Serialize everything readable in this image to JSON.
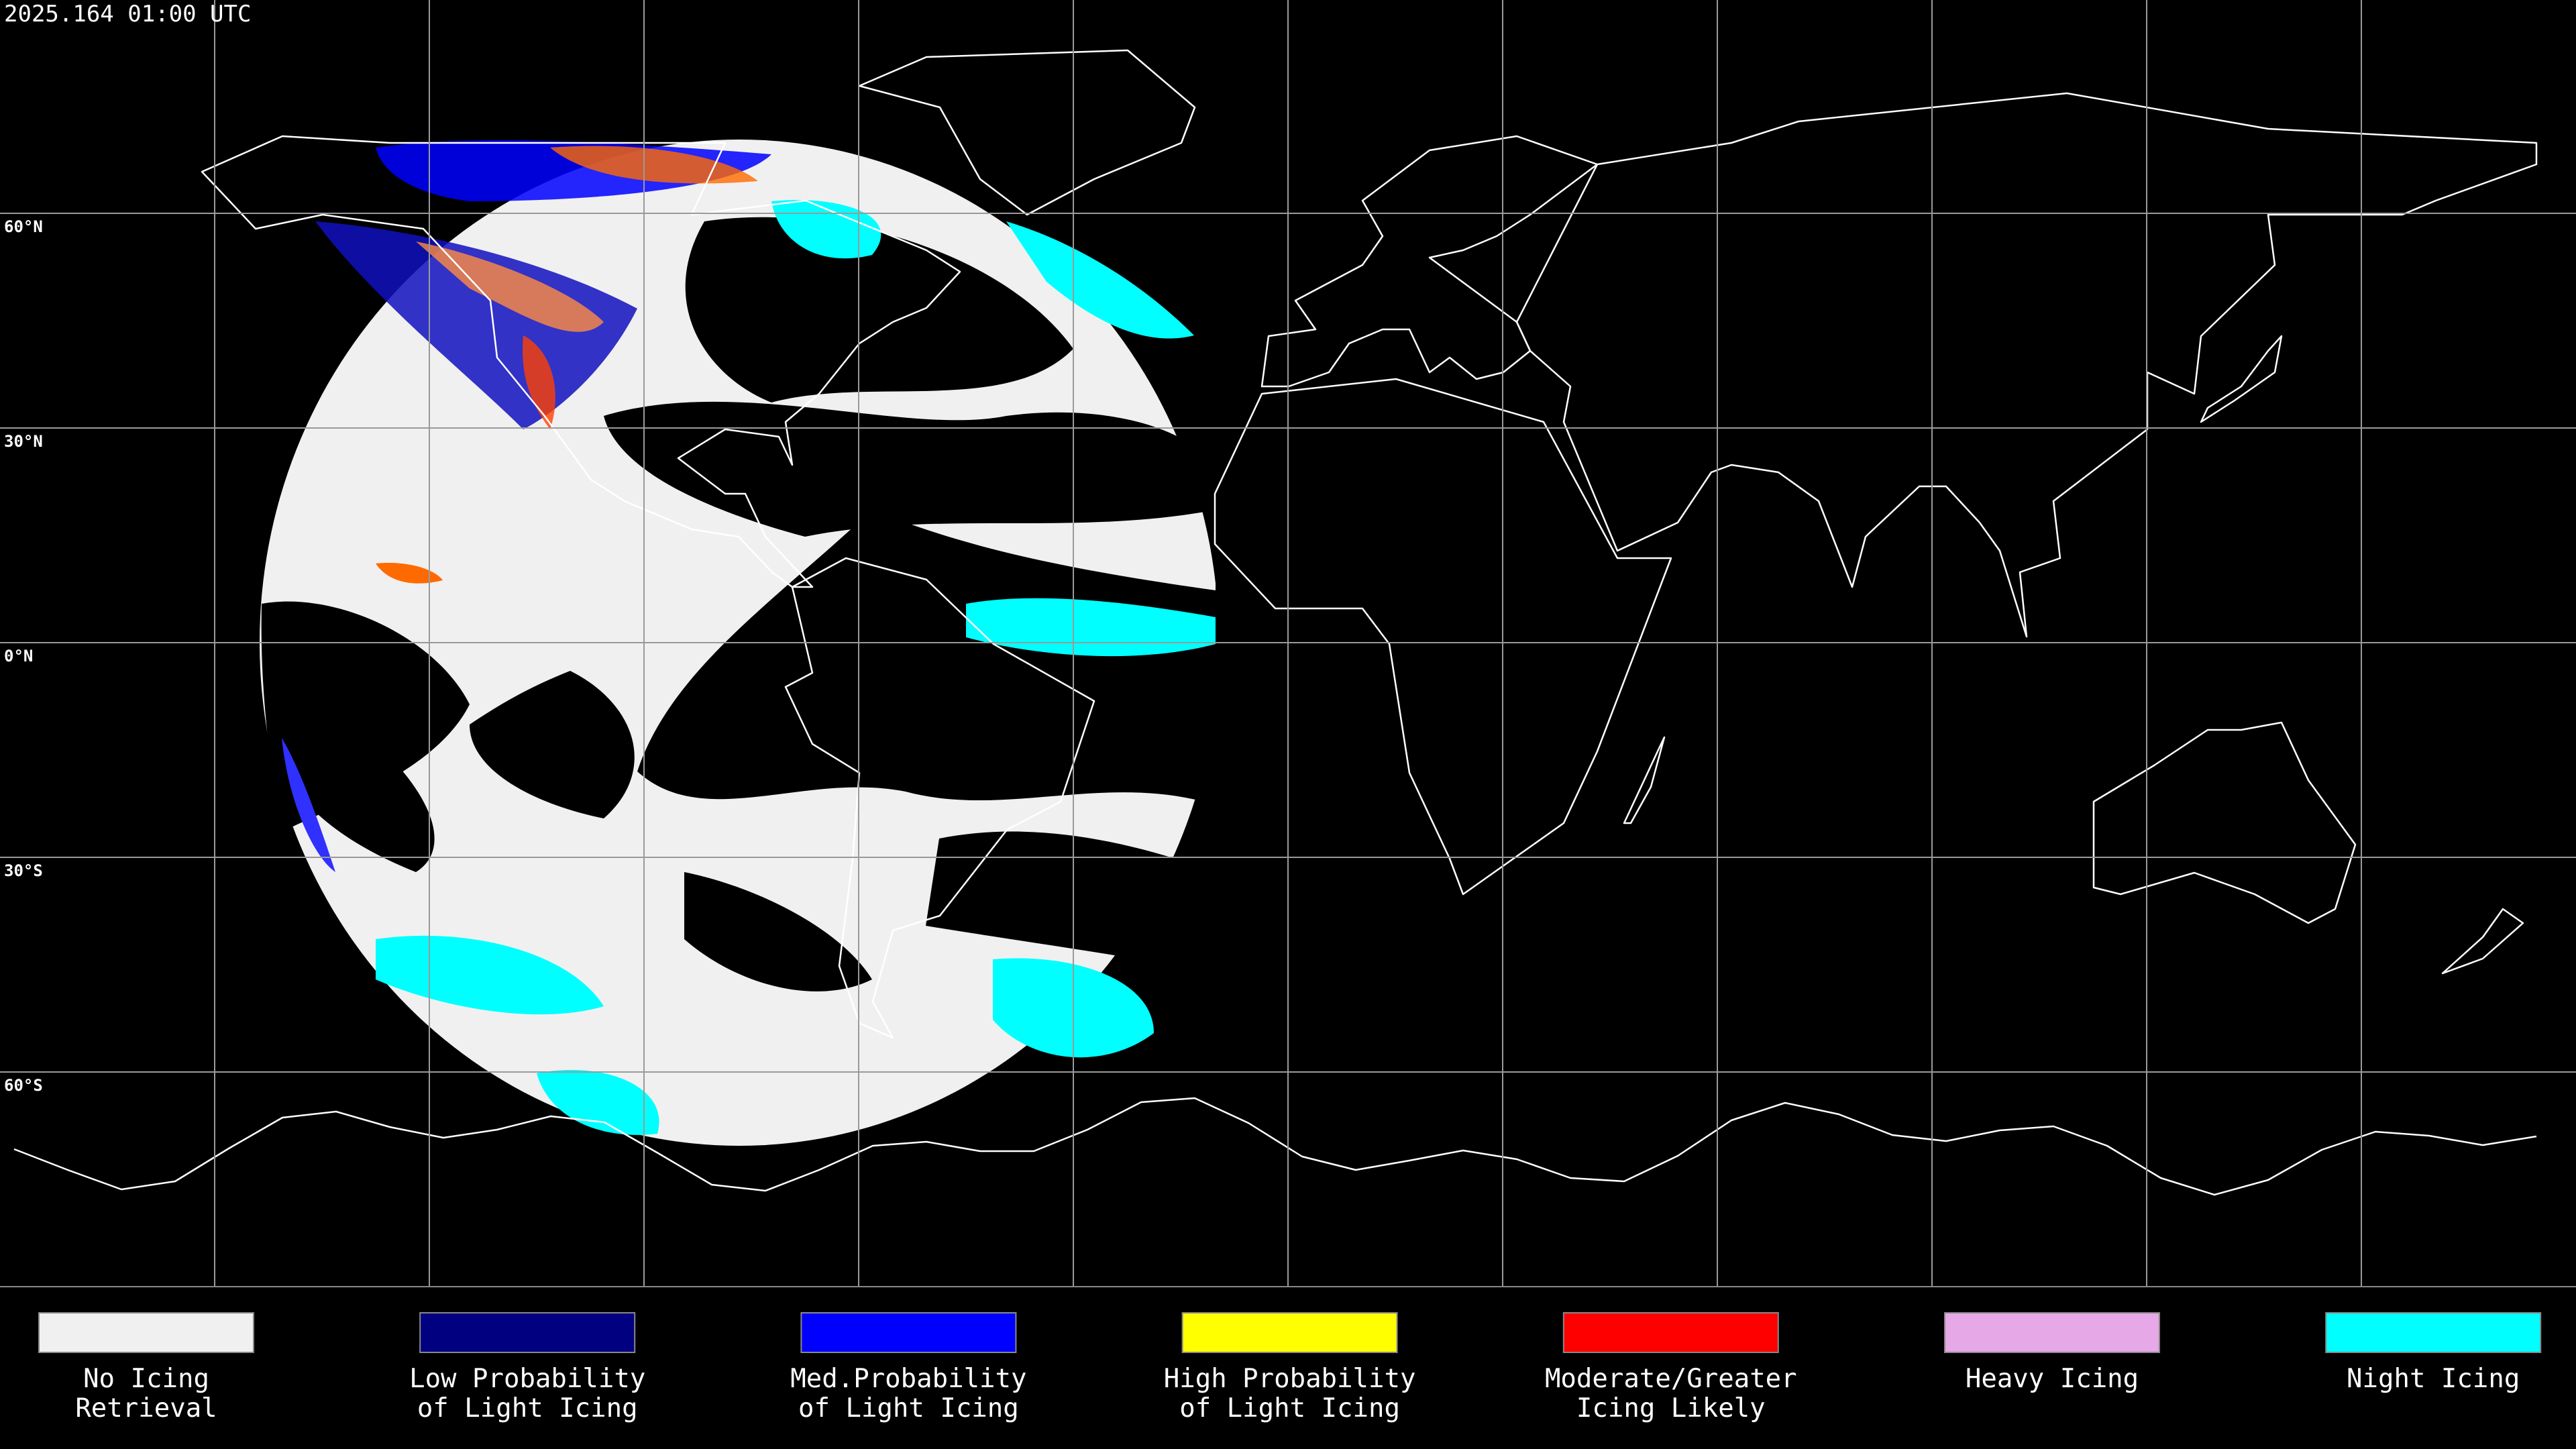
{
  "header": {
    "title": "2025.164 01:00 UTC"
  },
  "map": {
    "latitude_labels": [
      "60°N",
      "30°N",
      "0°N",
      "30°S",
      "60°S"
    ]
  },
  "legend": {
    "items": [
      {
        "label": [
          "No Icing",
          "Retrieval"
        ],
        "color": "#f0f0f0"
      },
      {
        "label": [
          "Low Probability",
          "of Light Icing"
        ],
        "color": "#000080"
      },
      {
        "label": [
          "Med.Probability",
          "of Light Icing"
        ],
        "color": "#0000ff"
      },
      {
        "label": [
          "High Probability",
          "of Light Icing"
        ],
        "color": "#ffff00"
      },
      {
        "label": [
          "Moderate/Greater",
          "Icing Likely"
        ],
        "color": "#ff0000"
      },
      {
        "label": [
          "Heavy Icing"
        ],
        "color": "#e6a8e6"
      },
      {
        "label": [
          "Night Icing"
        ],
        "color": "#00ffff"
      }
    ]
  }
}
